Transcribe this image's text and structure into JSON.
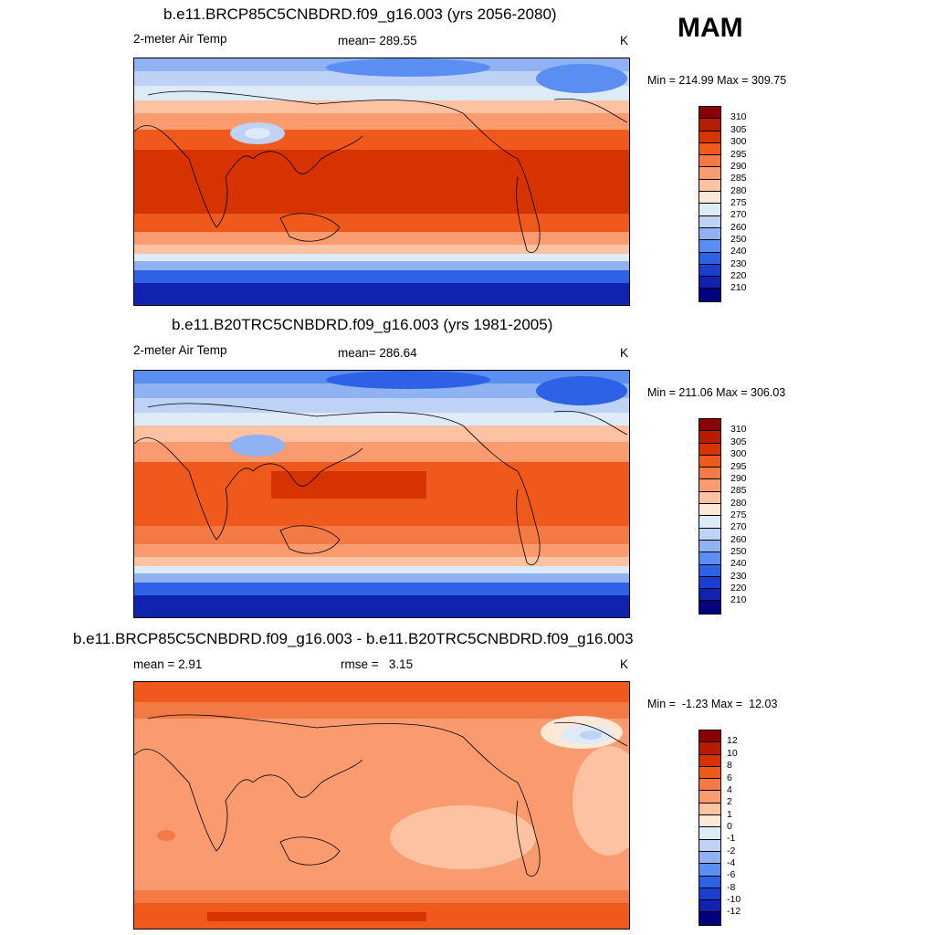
{
  "season": "MAM",
  "panels": [
    {
      "title": "b.e11.BRCP85C5CNBDRD.f09_g16.003 (yrs 2056-2080)",
      "variable": "2-meter Air Temp",
      "stat1": "mean= 289.55",
      "stat2": "",
      "units": "K",
      "minmax": "Min = 214.99 Max = 309.75",
      "colorbar_labels": [
        "310",
        "305",
        "300",
        "295",
        "290",
        "285",
        "280",
        "275",
        "270",
        "260",
        "250",
        "240",
        "230",
        "220",
        "210"
      ]
    },
    {
      "title": "b.e11.B20TRC5CNBDRD.f09_g16.003 (yrs 1981-2005)",
      "variable": "2-meter Air Temp",
      "stat1": "mean= 286.64",
      "stat2": "",
      "units": "K",
      "minmax": "Min = 211.06 Max = 306.03",
      "colorbar_labels": [
        "310",
        "305",
        "300",
        "295",
        "290",
        "285",
        "280",
        "275",
        "270",
        "260",
        "250",
        "240",
        "230",
        "220",
        "210"
      ]
    },
    {
      "title": "b.e11.BRCP85C5CNBDRD.f09_g16.003 - b.e11.B20TRC5CNBDRD.f09_g16.003",
      "variable": "",
      "stat1": "mean =   2.91",
      "stat2": "rmse =   3.15",
      "units": "K",
      "minmax": "Min =  -1.23 Max =  12.03",
      "colorbar_labels": [
        "12",
        "10",
        "8",
        "6",
        "4",
        "2",
        "1",
        "0",
        "-1",
        "-2",
        "-4",
        "-6",
        "-8",
        "-10",
        "-12"
      ]
    }
  ],
  "colors": {
    "temp_scale": [
      "#8b0000",
      "#b71c00",
      "#d73300",
      "#ef5a1c",
      "#f47a45",
      "#f99b6e",
      "#fcc2a2",
      "#fde8d8",
      "#ddeaf8",
      "#bdd2f5",
      "#8fb2f2",
      "#5a8ef0",
      "#2d62e6",
      "#1a3fd0",
      "#0f22b0",
      "#000080"
    ],
    "diff_scale": [
      "#8b0000",
      "#b71c00",
      "#d73300",
      "#ef5a1c",
      "#f47a45",
      "#f99b6e",
      "#fcc2a2",
      "#fde8d8",
      "#ddeaf8",
      "#bdd2f5",
      "#8fb2f2",
      "#5a8ef0",
      "#2d62e6",
      "#1a3fd0",
      "#0f22b0",
      "#000080"
    ]
  }
}
